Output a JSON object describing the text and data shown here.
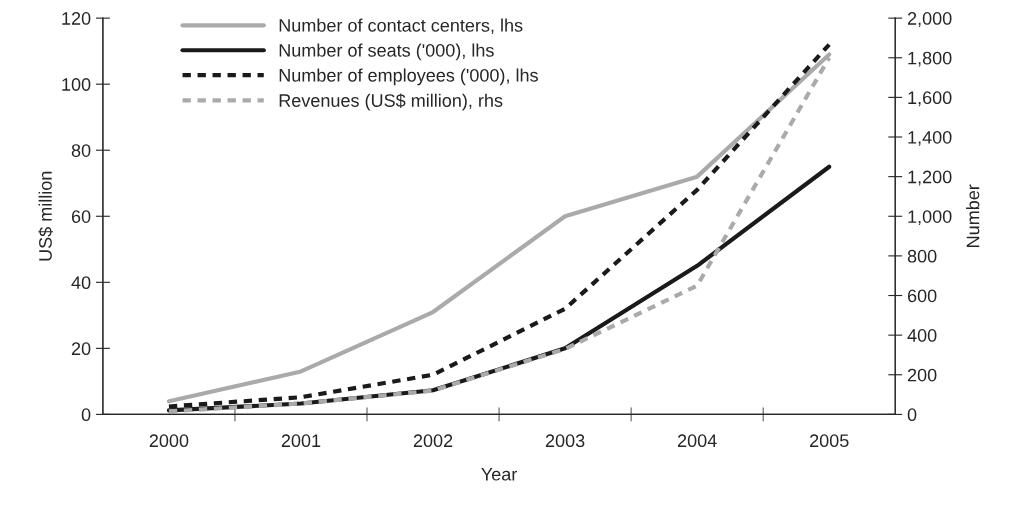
{
  "chart_data": {
    "type": "line",
    "xlabel": "Year",
    "ylabel": "US$ million",
    "y2label": "Number",
    "categories": [
      "2000",
      "2001",
      "2002",
      "2003",
      "2004",
      "2005"
    ],
    "series": [
      {
        "name": "Number of contact centers, lhs",
        "color": "#aaaaaa",
        "line_style": "solid",
        "values": [
          4,
          13,
          31,
          60,
          72,
          109
        ]
      },
      {
        "name": "Number of seats ('000), lhs",
        "color": "#1a1a1a",
        "line_style": "solid",
        "values": [
          1.2,
          3.3,
          7.3,
          20,
          45,
          75
        ]
      },
      {
        "name": "Number of employees ('000), lhs",
        "color": "#1a1a1a",
        "line_style": "dashed",
        "values": [
          2.4,
          5.2,
          12,
          32,
          68,
          112
        ]
      },
      {
        "name": "Revenues (US$ million), rhs",
        "color": "#aaaaaa",
        "line_style": "dashed",
        "axis": "y2",
        "values": [
          15,
          55,
          120,
          330,
          650,
          1800
        ]
      }
    ],
    "ylim": [
      0,
      120
    ],
    "yticks": [
      0,
      20,
      40,
      60,
      80,
      100,
      120
    ],
    "y2lim": [
      0,
      2000
    ],
    "y2ticks": [
      0,
      {
        "value": 200,
        "label": "200"
      },
      {
        "value": 400,
        "label": "400"
      },
      {
        "value": 600,
        "label": "600"
      },
      {
        "value": 800,
        "label": "800"
      },
      {
        "value": 1000,
        "label": "1,000"
      },
      {
        "value": 1200,
        "label": "1,200"
      },
      {
        "value": 1400,
        "label": "1,400"
      },
      {
        "value": 1600,
        "label": "1,600"
      },
      {
        "value": 1800,
        "label": "1,800"
      },
      {
        "value": 2000,
        "label": "2,000"
      }
    ],
    "legend": "top left",
    "grid": false,
    "marker": "none"
  }
}
